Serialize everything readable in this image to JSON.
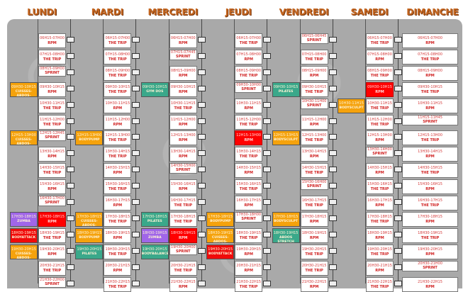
{
  "colors": {
    "orange": "#f5a20c",
    "purple": "#a066e8",
    "red": "#f00a0a",
    "teal": "#3aa88a",
    "header": "#c4651f"
  },
  "days": [
    {
      "name": "LUNDI",
      "cycling": [
        [
          "06H15-07H00",
          "RPM"
        ],
        [
          "07H15-08H00",
          "THE TRIP"
        ],
        [
          "08H15-09H00",
          "SPRINT"
        ],
        [
          "09H30-10H15",
          "RPM"
        ],
        [
          "10H30-11H15",
          "THE TRIP"
        ],
        [
          "11H15-12H00",
          "THE TRIP"
        ],
        [
          "12H15-12H45",
          "SPRINT"
        ],
        [
          "13H30-14H15",
          "RPM"
        ],
        [
          "14H30-15H15",
          "THE TRIP"
        ],
        [
          "15H30-16H15",
          "RPM"
        ],
        [
          "16H30-17H00",
          "SPRINT"
        ],
        [
          "17H30-18H15",
          "RPM"
        ],
        [
          "18H30-19H15",
          "THE TRIP"
        ],
        [
          "19H30-20H15",
          "RPM"
        ],
        [
          "20H30-21H15",
          "THE TRIP"
        ],
        [
          "21H30-22H00",
          "SPRINT"
        ]
      ],
      "highlight": [
        11
      ],
      "groups": [
        {
          "row": 3,
          "time": "09H30-10H15",
          "name": "CUISSES-ABDOS-FESSIERS",
          "color": "orange"
        },
        {
          "row": 6,
          "time": "12H15-13H00",
          "name": "CUISSES-ABDOS-FESSIERS",
          "color": "orange"
        },
        {
          "row": 11,
          "time": "17H30-18H15",
          "name": "ZUMBA",
          "color": "purple"
        },
        {
          "row": 12,
          "time": "18H30-19H15",
          "name": "BODYATTACK",
          "color": "red"
        },
        {
          "row": 13,
          "time": "19H30-20H15",
          "name": "CUISSES-ABDOS-FESSIERS",
          "color": "orange"
        }
      ]
    },
    {
      "name": "MARDI",
      "cycling": [
        [
          "06H15-07H00",
          "THE TRIP"
        ],
        [
          "07H15-08H00",
          "THE TRIP"
        ],
        [
          "08H15-09H00",
          "THE TRIP"
        ],
        [
          "09H30-10H15",
          "THE TRIP"
        ],
        [
          "10H30-11H15",
          "RPM"
        ],
        [
          "11H15-12H00",
          "RPM"
        ],
        [
          "12H15-13H00",
          "THE TRIP"
        ],
        [
          "13H30-14H15",
          "THE TRIP"
        ],
        [
          "14H30-15H15",
          "RPM"
        ],
        [
          "15H30-16H15",
          "THE TRIP"
        ],
        [
          "16H30-17H15",
          "RPM"
        ],
        [
          "17H30-18H15",
          "THE TRIP"
        ],
        [
          "18H30-19H15",
          "RPM"
        ],
        [
          "19H30-20H15",
          "THE TRIP"
        ],
        [
          "20H30-21H15",
          "RPM"
        ],
        [
          "21H30-22H15",
          "THE TRIP"
        ]
      ],
      "highlight": [],
      "groups": [
        {
          "row": 6,
          "time": "12H15-13H00",
          "name": "BODYPUMP",
          "color": "orange"
        },
        {
          "row": 11,
          "time": "17H30-18H15",
          "name": "CUISSES-ABDOS-FESSIERS",
          "color": "orange"
        },
        {
          "row": 12,
          "time": "18H30-19H15",
          "name": "BODYPUMP",
          "color": "orange"
        },
        {
          "row": 13,
          "time": "19H30-20H15",
          "name": "PILATES",
          "color": "teal"
        }
      ]
    },
    {
      "name": "MERCREDI",
      "cycling": [
        [
          "06H15-07H00",
          "RPM"
        ],
        [
          "07H15-07H45",
          "SPRINT"
        ],
        [
          "08H15-09H00",
          "RPM"
        ],
        [
          "09H30-10H15",
          "RPM"
        ],
        [
          "10H30-11H15",
          "THE TRIP"
        ],
        [
          "11H15-12H00",
          "RPM"
        ],
        [
          "12H15-13H00",
          "RPM"
        ],
        [
          "13H30-14H15",
          "RPM"
        ],
        [
          "14H30-15H00",
          "SPRINT"
        ],
        [
          "15H30-16H15",
          "RPM"
        ],
        [
          "16H30-17H15",
          "THE TRIP"
        ],
        [
          "17H30-18H15",
          "THE TRIP"
        ],
        [
          "18H30-19H15",
          "RPM"
        ],
        [
          "19H30-20H00",
          "SPRINT"
        ],
        [
          "20H30-21H15",
          "THE TRIP"
        ],
        [
          "21H30-22H15",
          "RPM"
        ]
      ],
      "highlight": [
        12
      ],
      "groups": [
        {
          "row": 3,
          "time": "09H30-10H15",
          "name": "GYM DOS",
          "color": "teal"
        },
        {
          "row": 11,
          "time": "17H30-18H15",
          "name": "PILATES",
          "color": "teal"
        },
        {
          "row": 12,
          "time": "18H30-19H15",
          "name": "ZUMBA",
          "color": "purple"
        },
        {
          "row": 13,
          "time": "19H30-20H15",
          "name": "BODYBALANCE",
          "color": "teal"
        }
      ]
    },
    {
      "name": "JEUDI",
      "cycling": [
        [
          "06H15-07H00",
          "THE TRIP"
        ],
        [
          "07H15-08H00",
          "RPM"
        ],
        [
          "08H15-09H00",
          "THE TRIP"
        ],
        [
          "09H30-10H00",
          "SPRINT"
        ],
        [
          "10H30-11H15",
          "RPM"
        ],
        [
          "11H15-12H00",
          "THE TRIP"
        ],
        [
          "12H15-13H00",
          "RPM"
        ],
        [
          "13H30-14H15",
          "THE TRIP"
        ],
        [
          "14H30-15H15",
          "RPM"
        ],
        [
          "15H30-16H15",
          "THE TRIP"
        ],
        [
          "16H30-17H15",
          "RPM"
        ],
        [
          "17H30-18H00",
          "SPRINT"
        ],
        [
          "18H30-19H15",
          "THE TRIP"
        ],
        [
          "19H30-20H15",
          "RPM"
        ],
        [
          "20H30-21H15",
          "RPM"
        ],
        [
          "21H30-22H15",
          "THE TRIP"
        ]
      ],
      "highlight": [
        6
      ],
      "groups": [
        {
          "row": 11,
          "time": "17H30-18H15",
          "name": "BODYPUMP",
          "color": "orange"
        },
        {
          "row": 12,
          "time": "18H30-19H15",
          "name": "CUISSES-ABDOS-FESSIERS",
          "color": "orange"
        },
        {
          "row": 13,
          "time": "19H30-20H15",
          "name": "BODYATTACK",
          "color": "red"
        }
      ]
    },
    {
      "name": "VENDREDI",
      "cycling": [
        [
          "06H15-06H45",
          "SPRINT"
        ],
        [
          "07H15-08H00",
          "THE TRIP"
        ],
        [
          "08H15-09H00",
          "RPM"
        ],
        [
          "09H30-10H15",
          "THE TRIP"
        ],
        [
          "10H30-11H00",
          "SPRINT"
        ],
        [
          "11H15-12H00",
          "RPM"
        ],
        [
          "12H15-13H00",
          "THE TRIP"
        ],
        [
          "13H30-14H15",
          "RPM"
        ],
        [
          "14H30-15H15",
          "THE TRIP"
        ],
        [
          "15H30-16H00",
          "SPRINT"
        ],
        [
          "16H30-17H15",
          "THE TRIP"
        ],
        [
          "17H30-18H15",
          "RPM"
        ],
        [
          "18H30-19H15",
          "RPM"
        ],
        [
          "19H30-20H15",
          "THE TRIP"
        ],
        [
          "20H30-21H15",
          "THE TRIP"
        ],
        [
          "21H30-22H15",
          "RPM"
        ]
      ],
      "highlight": [],
      "groups": [
        {
          "row": 3,
          "time": "09H30-10H15",
          "name": "PILATES",
          "color": "teal"
        },
        {
          "row": 6,
          "time": "12H15-13H15",
          "name": "BODYSCULPT",
          "color": "orange"
        },
        {
          "row": 11,
          "time": "17H30-18H15",
          "name": "BODYSCULPT",
          "color": "orange"
        },
        {
          "row": 12,
          "time": "18H30-19H15",
          "name": "ABDOS STRETCH",
          "color": "teal"
        }
      ]
    },
    {
      "name": "SAMEDI",
      "cycling": [
        [
          "06H15-07H00",
          "THE TRIP"
        ],
        [
          "07H15-08H00",
          "RPM"
        ],
        [
          "08H15-09H00",
          "THE TRIP"
        ],
        [
          "09H30-10H15",
          "RPM"
        ],
        [
          "10H30-11H15",
          "THE TRIP"
        ],
        [
          "11H15-12H00",
          "THE TRIP"
        ],
        [
          "12H15-13H00",
          "RPM"
        ],
        [
          "13H30-14H00",
          "SPRINT"
        ],
        [
          "14H30-15H15",
          "RPM"
        ],
        [
          "15H30-16H15",
          "THE TRIP"
        ],
        [
          "16H30-17H15",
          "RPM"
        ],
        [
          "17H30-18H15",
          "THE TRIP"
        ],
        [
          "18H30-19H15",
          "RPM"
        ],
        [
          "19H30-20H15",
          "THE TRIP"
        ],
        [
          "20H30-21H15",
          "RPM"
        ],
        [
          "21H30-22H15",
          "THE TRIP"
        ]
      ],
      "highlight": [
        3
      ],
      "groups": [
        {
          "row": 4,
          "time": "10H30-11H15",
          "name": "BODYSCULPT",
          "color": "orange"
        }
      ]
    },
    {
      "name": "DIMANCHE",
      "cycling": [
        [
          "06H15-07H00",
          "RPM"
        ],
        [
          "07H15-08H00",
          "THE TRIP"
        ],
        [
          "08H15-09H00",
          "RPM"
        ],
        [
          "09H30-10H15",
          "THE TRIP"
        ],
        [
          "10H30-11H15",
          "RPM"
        ],
        [
          "11H15-11H45",
          "SPRINT"
        ],
        [
          "12H15-13H00",
          "THE TRIP"
        ],
        [
          "13H30-14H15",
          "RPM"
        ],
        [
          "14H30-15H15",
          "THE TRIP"
        ],
        [
          "15H30-16H15",
          "RPM"
        ],
        [
          "16H30-17H15",
          "THE TRIP"
        ],
        [
          "17H30-18H15",
          "RPM"
        ],
        [
          "18H30-19H15",
          "THE TRIP"
        ],
        [
          "19H30-20H15",
          "RPM"
        ],
        [
          "20H30-21H00",
          "SPRINT"
        ],
        [
          "21H30-22H15",
          "RPM"
        ]
      ],
      "highlight": [],
      "groups": []
    }
  ]
}
